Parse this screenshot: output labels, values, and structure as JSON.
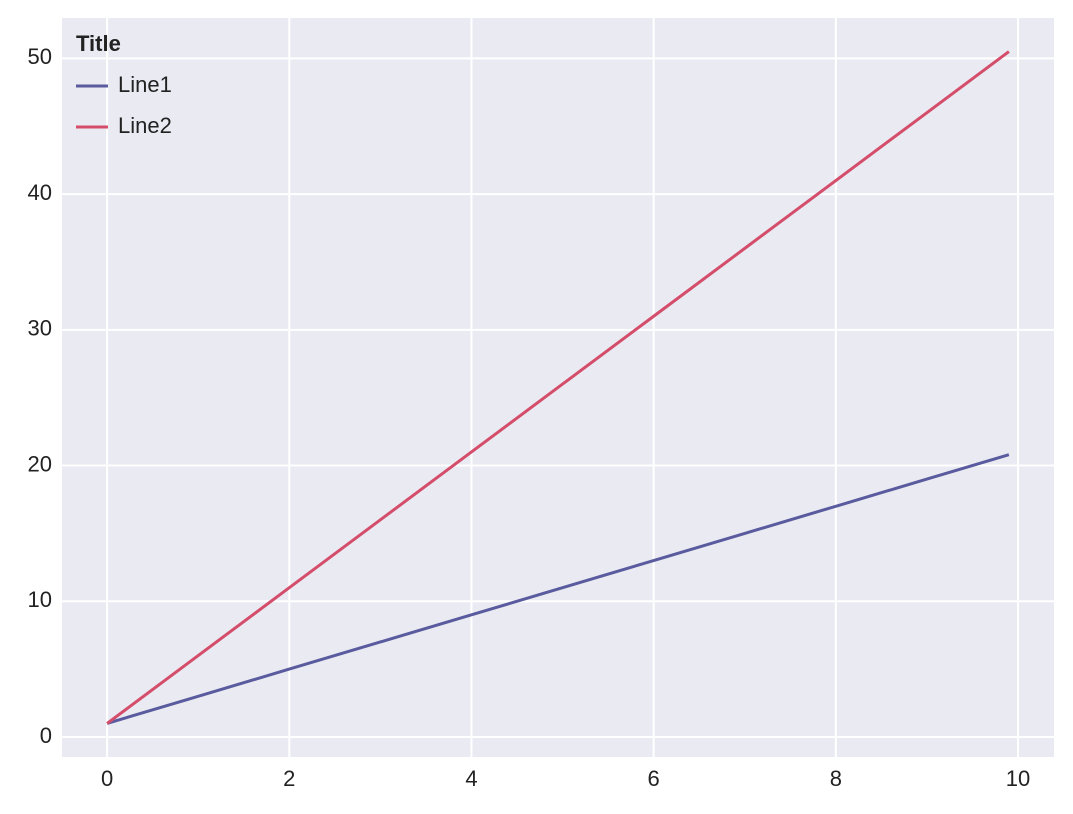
{
  "chart_data": {
    "type": "line",
    "legend_title": "Title",
    "legend": "upper left",
    "x": [
      0,
      1,
      2,
      3,
      4,
      5,
      6,
      7,
      8,
      9,
      9.9
    ],
    "series": [
      {
        "name": "Line1",
        "color": "#5a5b9f",
        "values": [
          1,
          3,
          5,
          7,
          9,
          11,
          13,
          15,
          17,
          19,
          20.8
        ]
      },
      {
        "name": "Line2",
        "color": "#d44d6b",
        "values": [
          1,
          6,
          11,
          16,
          21,
          26,
          31,
          36,
          41,
          46,
          50.5
        ]
      }
    ],
    "xlim": [
      -0.495,
      10.395
    ],
    "ylim": [
      -1.475,
      52.975
    ],
    "xticks": [
      0,
      2,
      4,
      6,
      8,
      10
    ],
    "yticks": [
      0,
      10,
      20,
      30,
      40,
      50
    ],
    "grid": true
  }
}
